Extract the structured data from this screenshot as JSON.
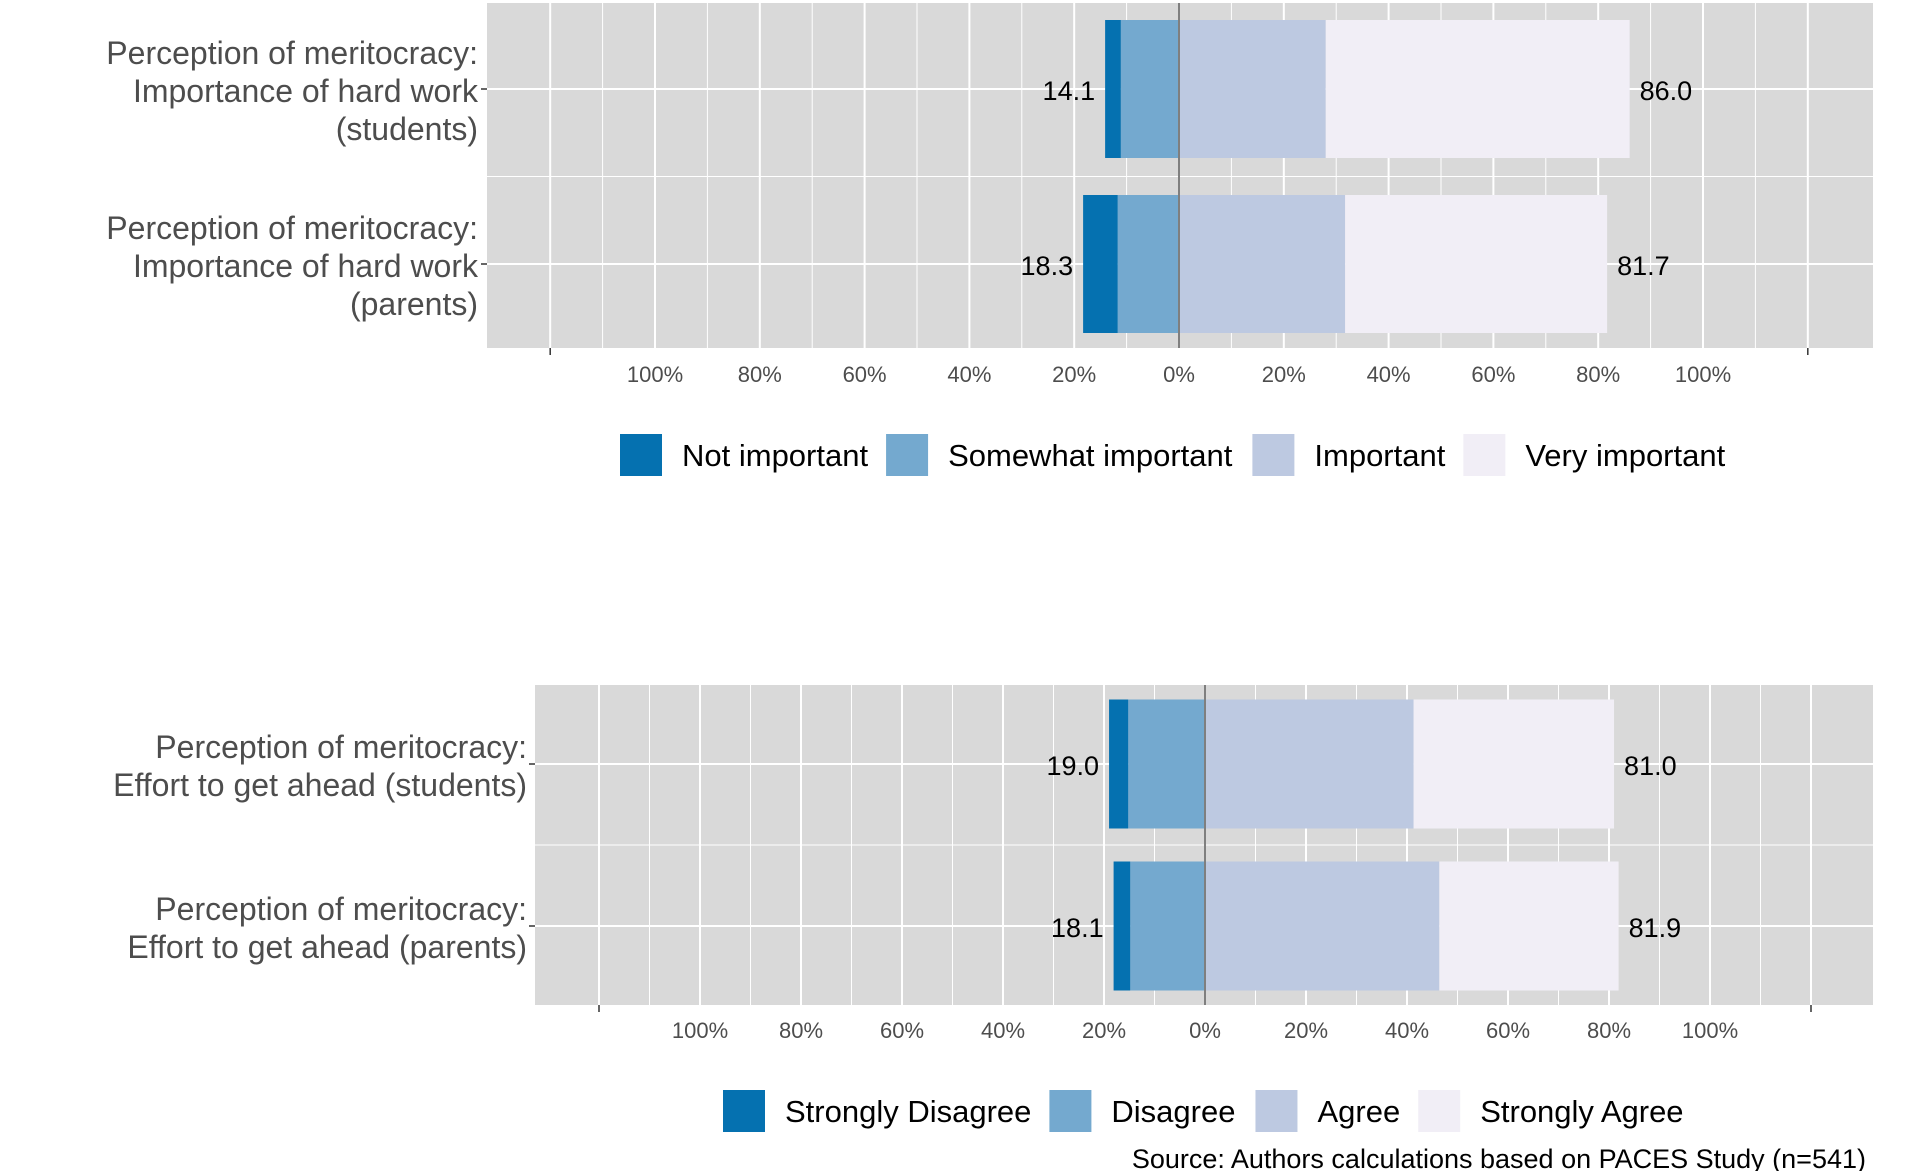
{
  "chart_data": [
    {
      "type": "bar",
      "subtype": "diverging-stacked",
      "title": "",
      "xlabel": "",
      "ylabel": "",
      "xlim": [
        -120,
        120
      ],
      "tick_labels": [
        "100%",
        "80%",
        "60%",
        "40%",
        "20%",
        "0%",
        "20%",
        "40%",
        "60%",
        "80%",
        "100%"
      ],
      "tick_values": [
        -100,
        -80,
        -60,
        -40,
        -20,
        0,
        20,
        40,
        60,
        80,
        100
      ],
      "legend_position": "bottom",
      "grid": true,
      "legend": [
        {
          "name": "Not important",
          "color": "#0571b0"
        },
        {
          "name": "Somewhat important",
          "color": "#74a9cf"
        },
        {
          "name": "Important",
          "color": "#bdc9e1"
        },
        {
          "name": "Very important",
          "color": "#f1eef6"
        }
      ],
      "rows": [
        {
          "category": [
            "Perception of meritocracy:",
            "Importance of hard work",
            "(students)"
          ],
          "segments": [
            -3.0,
            -11.1,
            28.0,
            58.0
          ],
          "left_label": "14.1",
          "right_label": "86.0"
        },
        {
          "category": [
            "Perception of meritocracy:",
            "Importance of hard work",
            "(parents)"
          ],
          "segments": [
            -6.6,
            -11.7,
            31.7,
            50.0
          ],
          "left_label": "18.3",
          "right_label": "81.7"
        }
      ]
    },
    {
      "type": "bar",
      "subtype": "diverging-stacked",
      "title": "",
      "xlabel": "",
      "ylabel": "",
      "xlim": [
        -120,
        120
      ],
      "tick_labels": [
        "100%",
        "80%",
        "60%",
        "40%",
        "20%",
        "0%",
        "20%",
        "40%",
        "60%",
        "80%",
        "100%"
      ],
      "tick_values": [
        -100,
        -80,
        -60,
        -40,
        -20,
        0,
        20,
        40,
        60,
        80,
        100
      ],
      "legend_position": "bottom",
      "grid": true,
      "legend": [
        {
          "name": "Strongly Disagree",
          "color": "#0571b0"
        },
        {
          "name": "Disagree",
          "color": "#74a9cf"
        },
        {
          "name": "Agree",
          "color": "#bdc9e1"
        },
        {
          "name": "Strongly Agree",
          "color": "#f1eef6"
        }
      ],
      "rows": [
        {
          "category": [
            "Perception of meritocracy:",
            "Effort to get ahead (students)"
          ],
          "segments": [
            -3.8,
            -15.2,
            41.3,
            39.7
          ],
          "left_label": "19.0",
          "right_label": "81.0"
        },
        {
          "category": [
            "Perception of meritocracy:",
            "Effort to get ahead  (parents)"
          ],
          "segments": [
            -3.3,
            -14.8,
            46.4,
            35.5
          ],
          "left_label": "18.1",
          "right_label": "81.9"
        }
      ]
    }
  ],
  "source_note": "Source: Authors calculations based on PACES Study (n=541)"
}
